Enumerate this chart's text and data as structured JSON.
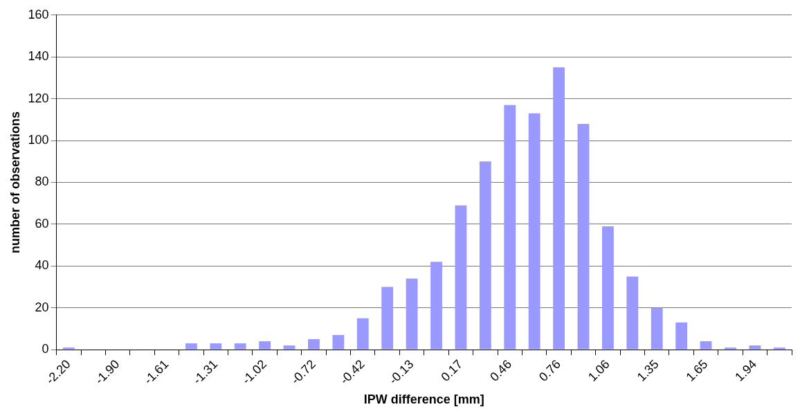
{
  "chart_data": {
    "type": "bar",
    "xlabel": "IPW difference [mm]",
    "ylabel": "number of observations",
    "categories": [
      "-2.20",
      null,
      "-1.90",
      null,
      "-1.61",
      null,
      "-1.31",
      null,
      "-1.02",
      null,
      "-0.72",
      null,
      "-0.42",
      null,
      "-0.13",
      null,
      "0.17",
      null,
      "0.46",
      null,
      "0.76",
      null,
      "1.06",
      null,
      "1.35",
      null,
      "1.65",
      null,
      "1.94",
      null
    ],
    "values": [
      1,
      0,
      0,
      0,
      0,
      3,
      3,
      3,
      4,
      2,
      5,
      7,
      15,
      30,
      34,
      42,
      69,
      90,
      117,
      113,
      135,
      108,
      59,
      35,
      20,
      13,
      4,
      1,
      2,
      1
    ],
    "color": "#9999ff",
    "ylim": [
      0,
      160
    ],
    "yticks": [
      0,
      20,
      40,
      60,
      80,
      100,
      120,
      140,
      160
    ],
    "grid": "y",
    "legend": false
  }
}
